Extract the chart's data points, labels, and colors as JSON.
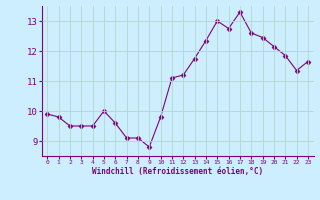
{
  "x": [
    0,
    1,
    2,
    3,
    4,
    5,
    6,
    7,
    8,
    9,
    10,
    11,
    12,
    13,
    14,
    15,
    16,
    17,
    18,
    19,
    20,
    21,
    22,
    23
  ],
  "y": [
    9.9,
    9.8,
    9.5,
    9.5,
    9.5,
    10.0,
    9.6,
    9.1,
    9.1,
    8.8,
    9.8,
    11.1,
    11.2,
    11.75,
    12.35,
    13.0,
    12.75,
    13.3,
    12.6,
    12.45,
    12.15,
    11.85,
    11.35,
    11.65
  ],
  "line_color": "#800080",
  "marker": "D",
  "marker_size": 2.5,
  "bg_color": "#cceeff",
  "grid_color": "#aaddcc",
  "xlabel": "Windchill (Refroidissement éolien,°C)",
  "xlabel_color": "#800080",
  "tick_color": "#800080",
  "ylim": [
    8.5,
    13.5
  ],
  "yticks": [
    9,
    10,
    11,
    12,
    13
  ],
  "xticks": [
    0,
    1,
    2,
    3,
    4,
    5,
    6,
    7,
    8,
    9,
    10,
    11,
    12,
    13,
    14,
    15,
    16,
    17,
    18,
    19,
    20,
    21,
    22,
    23
  ]
}
